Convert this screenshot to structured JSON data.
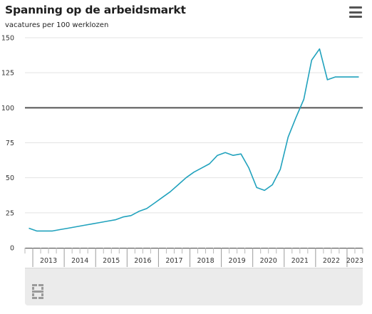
{
  "header": {
    "title": "Spanning op de arbeidsmarkt",
    "subtitle": "vacatures per 100 werklozen"
  },
  "colors": {
    "line": "#21a2bd",
    "reference_line": "#555555",
    "grid": "#e3e3e3",
    "axis": "#444444"
  },
  "icons": {
    "menu": "hamburger-menu-icon",
    "logo": "cbs-logo-icon"
  },
  "chart_data": {
    "type": "line",
    "title": "Spanning op de arbeidsmarkt",
    "subtitle": "vacatures per 100 werklozen",
    "xlabel": "",
    "ylabel": "",
    "xlim": [
      2012.75,
      2023.5
    ],
    "ylim": [
      0,
      150
    ],
    "yticks": [
      0,
      25,
      50,
      75,
      100,
      125,
      150
    ],
    "xtick_labels": [
      "2013",
      "2014",
      "2015",
      "2016",
      "2017",
      "2018",
      "2019",
      "2020",
      "2021",
      "2022",
      "2023"
    ],
    "reference_line": {
      "y": 100
    },
    "grid": true,
    "legend": "none",
    "series": [
      {
        "x": [
          2012.875,
          2013.125,
          2013.375,
          2013.625,
          2013.875,
          2014.125,
          2014.375,
          2014.625,
          2014.875,
          2015.125,
          2015.375,
          2015.625,
          2015.875,
          2016.125,
          2016.375,
          2016.625,
          2016.875,
          2017.125,
          2017.375,
          2017.625,
          2017.875,
          2018.125,
          2018.375,
          2018.625,
          2018.875,
          2019.125,
          2019.375,
          2019.625,
          2019.875,
          2020.125,
          2020.375,
          2020.625,
          2020.875,
          2021.125,
          2021.375,
          2021.625,
          2021.875,
          2022.125,
          2022.375,
          2022.625,
          2022.875,
          2023.125,
          2023.375
        ],
        "values": [
          14,
          12,
          12,
          12,
          13,
          14,
          15,
          16,
          17,
          18,
          19,
          20,
          22,
          23,
          26,
          28,
          32,
          36,
          40,
          45,
          50,
          54,
          57,
          60,
          66,
          68,
          66,
          67,
          57,
          43,
          41,
          45,
          56,
          79,
          93,
          106,
          134,
          142,
          120,
          122,
          122,
          122,
          122
        ]
      }
    ]
  }
}
